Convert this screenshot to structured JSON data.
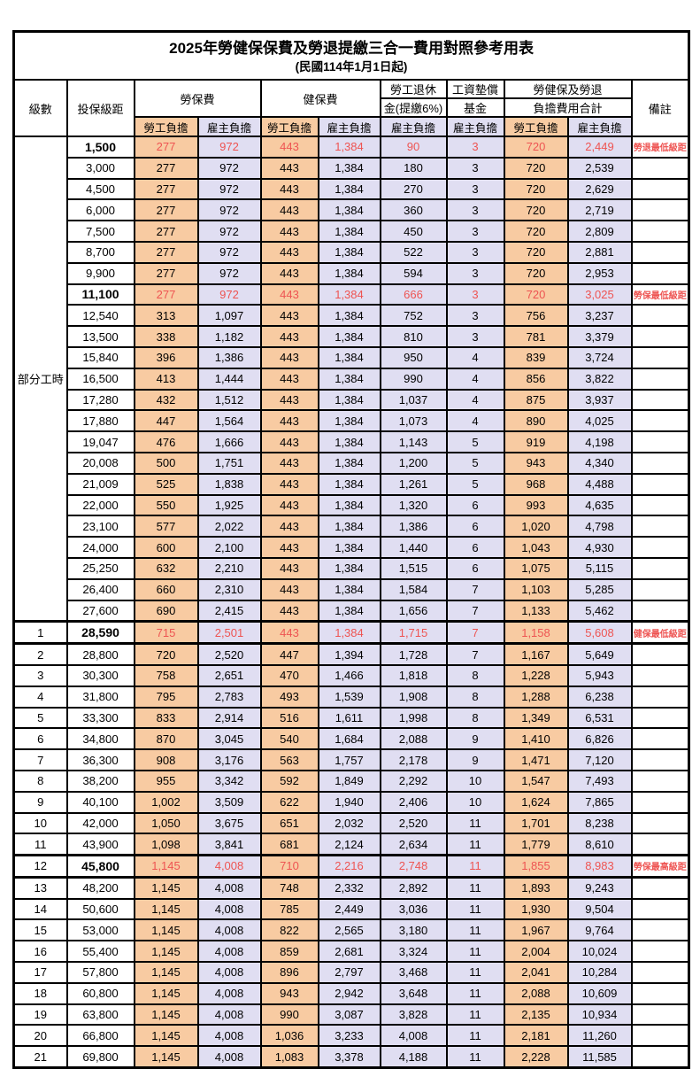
{
  "title": "2025年勞健保保費及勞退提繳三合一費用對照參考用表",
  "subtitle": "(民國114年1月1日起)",
  "colors": {
    "employee_share_bg": "#F8CBA2",
    "employer_share_bg": "#E0DEF2",
    "highlight_text": "#EE5452",
    "grid": "#000000"
  },
  "header": {
    "level": "級數",
    "bracket": "投保級距",
    "labor_ins": "勞保費",
    "health_ins": "健保費",
    "pension_l1": "勞工退休",
    "pension_l2": "金(提繳6%)",
    "wage_fund_l1": "工資墊償",
    "wage_fund_l2": "基金",
    "total_l1": "勞健保及勞退",
    "total_l2": "負擔費用合計",
    "remark": "備註",
    "employee": "勞工負擔",
    "employer": "雇主負擔"
  },
  "table": {
    "part_time_label": "部分工時",
    "part_time_rowspan": 23,
    "rows": [
      {
        "part_time": true,
        "level": "",
        "bracket": "1,500",
        "fees": [
          "277",
          "972",
          "443",
          "1,384",
          "90",
          "3",
          "720",
          "2,449"
        ],
        "remark": "勞退最低級距",
        "highlight": true,
        "thick": false
      },
      {
        "part_time": true,
        "level": "",
        "bracket": "3,000",
        "fees": [
          "277",
          "972",
          "443",
          "1,384",
          "180",
          "3",
          "720",
          "2,539"
        ],
        "remark": "",
        "highlight": false,
        "thick": false
      },
      {
        "part_time": true,
        "level": "",
        "bracket": "4,500",
        "fees": [
          "277",
          "972",
          "443",
          "1,384",
          "270",
          "3",
          "720",
          "2,629"
        ],
        "remark": "",
        "highlight": false,
        "thick": false
      },
      {
        "part_time": true,
        "level": "",
        "bracket": "6,000",
        "fees": [
          "277",
          "972",
          "443",
          "1,384",
          "360",
          "3",
          "720",
          "2,719"
        ],
        "remark": "",
        "highlight": false,
        "thick": false
      },
      {
        "part_time": true,
        "level": "",
        "bracket": "7,500",
        "fees": [
          "277",
          "972",
          "443",
          "1,384",
          "450",
          "3",
          "720",
          "2,809"
        ],
        "remark": "",
        "highlight": false,
        "thick": false
      },
      {
        "part_time": true,
        "level": "",
        "bracket": "8,700",
        "fees": [
          "277",
          "972",
          "443",
          "1,384",
          "522",
          "3",
          "720",
          "2,881"
        ],
        "remark": "",
        "highlight": false,
        "thick": false
      },
      {
        "part_time": true,
        "level": "",
        "bracket": "9,900",
        "fees": [
          "277",
          "972",
          "443",
          "1,384",
          "594",
          "3",
          "720",
          "2,953"
        ],
        "remark": "",
        "highlight": false,
        "thick": false
      },
      {
        "part_time": true,
        "level": "",
        "bracket": "11,100",
        "fees": [
          "277",
          "972",
          "443",
          "1,384",
          "666",
          "3",
          "720",
          "3,025"
        ],
        "remark": "勞保最低級距",
        "highlight": true,
        "thick": false
      },
      {
        "part_time": true,
        "level": "",
        "bracket": "12,540",
        "fees": [
          "313",
          "1,097",
          "443",
          "1,384",
          "752",
          "3",
          "756",
          "3,237"
        ],
        "remark": "",
        "highlight": false,
        "thick": false
      },
      {
        "part_time": true,
        "level": "",
        "bracket": "13,500",
        "fees": [
          "338",
          "1,182",
          "443",
          "1,384",
          "810",
          "3",
          "781",
          "3,379"
        ],
        "remark": "",
        "highlight": false,
        "thick": false
      },
      {
        "part_time": true,
        "level": "",
        "bracket": "15,840",
        "fees": [
          "396",
          "1,386",
          "443",
          "1,384",
          "950",
          "4",
          "839",
          "3,724"
        ],
        "remark": "",
        "highlight": false,
        "thick": false
      },
      {
        "part_time": true,
        "level": "",
        "bracket": "16,500",
        "fees": [
          "413",
          "1,444",
          "443",
          "1,384",
          "990",
          "4",
          "856",
          "3,822"
        ],
        "remark": "",
        "highlight": false,
        "thick": false
      },
      {
        "part_time": true,
        "level": "",
        "bracket": "17,280",
        "fees": [
          "432",
          "1,512",
          "443",
          "1,384",
          "1,037",
          "4",
          "875",
          "3,937"
        ],
        "remark": "",
        "highlight": false,
        "thick": false
      },
      {
        "part_time": true,
        "level": "",
        "bracket": "17,880",
        "fees": [
          "447",
          "1,564",
          "443",
          "1,384",
          "1,073",
          "4",
          "890",
          "4,025"
        ],
        "remark": "",
        "highlight": false,
        "thick": false
      },
      {
        "part_time": true,
        "level": "",
        "bracket": "19,047",
        "fees": [
          "476",
          "1,666",
          "443",
          "1,384",
          "1,143",
          "5",
          "919",
          "4,198"
        ],
        "remark": "",
        "highlight": false,
        "thick": false
      },
      {
        "part_time": true,
        "level": "",
        "bracket": "20,008",
        "fees": [
          "500",
          "1,751",
          "443",
          "1,384",
          "1,200",
          "5",
          "943",
          "4,340"
        ],
        "remark": "",
        "highlight": false,
        "thick": false
      },
      {
        "part_time": true,
        "level": "",
        "bracket": "21,009",
        "fees": [
          "525",
          "1,838",
          "443",
          "1,384",
          "1,261",
          "5",
          "968",
          "4,488"
        ],
        "remark": "",
        "highlight": false,
        "thick": false
      },
      {
        "part_time": true,
        "level": "",
        "bracket": "22,000",
        "fees": [
          "550",
          "1,925",
          "443",
          "1,384",
          "1,320",
          "6",
          "993",
          "4,635"
        ],
        "remark": "",
        "highlight": false,
        "thick": false
      },
      {
        "part_time": true,
        "level": "",
        "bracket": "23,100",
        "fees": [
          "577",
          "2,022",
          "443",
          "1,384",
          "1,386",
          "6",
          "1,020",
          "4,798"
        ],
        "remark": "",
        "highlight": false,
        "thick": false
      },
      {
        "part_time": true,
        "level": "",
        "bracket": "24,000",
        "fees": [
          "600",
          "2,100",
          "443",
          "1,384",
          "1,440",
          "6",
          "1,043",
          "4,930"
        ],
        "remark": "",
        "highlight": false,
        "thick": false
      },
      {
        "part_time": true,
        "level": "",
        "bracket": "25,250",
        "fees": [
          "632",
          "2,210",
          "443",
          "1,384",
          "1,515",
          "6",
          "1,075",
          "5,115"
        ],
        "remark": "",
        "highlight": false,
        "thick": false
      },
      {
        "part_time": true,
        "level": "",
        "bracket": "26,400",
        "fees": [
          "660",
          "2,310",
          "443",
          "1,384",
          "1,584",
          "7",
          "1,103",
          "5,285"
        ],
        "remark": "",
        "highlight": false,
        "thick": false
      },
      {
        "part_time": true,
        "level": "",
        "bracket": "27,600",
        "fees": [
          "690",
          "2,415",
          "443",
          "1,384",
          "1,656",
          "7",
          "1,133",
          "5,462"
        ],
        "remark": "",
        "highlight": false,
        "thick": false
      },
      {
        "part_time": false,
        "level": "1",
        "bracket": "28,590",
        "fees": [
          "715",
          "2,501",
          "443",
          "1,384",
          "1,715",
          "7",
          "1,158",
          "5,608"
        ],
        "remark": "健保最低級距",
        "highlight": true,
        "thick": true
      },
      {
        "part_time": false,
        "level": "2",
        "bracket": "28,800",
        "fees": [
          "720",
          "2,520",
          "447",
          "1,394",
          "1,728",
          "7",
          "1,167",
          "5,649"
        ],
        "remark": "",
        "highlight": false,
        "thick": false
      },
      {
        "part_time": false,
        "level": "3",
        "bracket": "30,300",
        "fees": [
          "758",
          "2,651",
          "470",
          "1,466",
          "1,818",
          "8",
          "1,228",
          "5,943"
        ],
        "remark": "",
        "highlight": false,
        "thick": false
      },
      {
        "part_time": false,
        "level": "4",
        "bracket": "31,800",
        "fees": [
          "795",
          "2,783",
          "493",
          "1,539",
          "1,908",
          "8",
          "1,288",
          "6,238"
        ],
        "remark": "",
        "highlight": false,
        "thick": false
      },
      {
        "part_time": false,
        "level": "5",
        "bracket": "33,300",
        "fees": [
          "833",
          "2,914",
          "516",
          "1,611",
          "1,998",
          "8",
          "1,349",
          "6,531"
        ],
        "remark": "",
        "highlight": false,
        "thick": false
      },
      {
        "part_time": false,
        "level": "6",
        "bracket": "34,800",
        "fees": [
          "870",
          "3,045",
          "540",
          "1,684",
          "2,088",
          "9",
          "1,410",
          "6,826"
        ],
        "remark": "",
        "highlight": false,
        "thick": false
      },
      {
        "part_time": false,
        "level": "7",
        "bracket": "36,300",
        "fees": [
          "908",
          "3,176",
          "563",
          "1,757",
          "2,178",
          "9",
          "1,471",
          "7,120"
        ],
        "remark": "",
        "highlight": false,
        "thick": false
      },
      {
        "part_time": false,
        "level": "8",
        "bracket": "38,200",
        "fees": [
          "955",
          "3,342",
          "592",
          "1,849",
          "2,292",
          "10",
          "1,547",
          "7,493"
        ],
        "remark": "",
        "highlight": false,
        "thick": false
      },
      {
        "part_time": false,
        "level": "9",
        "bracket": "40,100",
        "fees": [
          "1,002",
          "3,509",
          "622",
          "1,940",
          "2,406",
          "10",
          "1,624",
          "7,865"
        ],
        "remark": "",
        "highlight": false,
        "thick": false
      },
      {
        "part_time": false,
        "level": "10",
        "bracket": "42,000",
        "fees": [
          "1,050",
          "3,675",
          "651",
          "2,032",
          "2,520",
          "11",
          "1,701",
          "8,238"
        ],
        "remark": "",
        "highlight": false,
        "thick": false
      },
      {
        "part_time": false,
        "level": "11",
        "bracket": "43,900",
        "fees": [
          "1,098",
          "3,841",
          "681",
          "2,124",
          "2,634",
          "11",
          "1,779",
          "8,610"
        ],
        "remark": "",
        "highlight": false,
        "thick": false
      },
      {
        "part_time": false,
        "level": "12",
        "bracket": "45,800",
        "fees": [
          "1,145",
          "4,008",
          "710",
          "2,216",
          "2,748",
          "11",
          "1,855",
          "8,983"
        ],
        "remark": "勞保最高級距",
        "highlight": true,
        "thick": true
      },
      {
        "part_time": false,
        "level": "13",
        "bracket": "48,200",
        "fees": [
          "1,145",
          "4,008",
          "748",
          "2,332",
          "2,892",
          "11",
          "1,893",
          "9,243"
        ],
        "remark": "",
        "highlight": false,
        "thick": false
      },
      {
        "part_time": false,
        "level": "14",
        "bracket": "50,600",
        "fees": [
          "1,145",
          "4,008",
          "785",
          "2,449",
          "3,036",
          "11",
          "1,930",
          "9,504"
        ],
        "remark": "",
        "highlight": false,
        "thick": false
      },
      {
        "part_time": false,
        "level": "15",
        "bracket": "53,000",
        "fees": [
          "1,145",
          "4,008",
          "822",
          "2,565",
          "3,180",
          "11",
          "1,967",
          "9,764"
        ],
        "remark": "",
        "highlight": false,
        "thick": false
      },
      {
        "part_time": false,
        "level": "16",
        "bracket": "55,400",
        "fees": [
          "1,145",
          "4,008",
          "859",
          "2,681",
          "3,324",
          "11",
          "2,004",
          "10,024"
        ],
        "remark": "",
        "highlight": false,
        "thick": false
      },
      {
        "part_time": false,
        "level": "17",
        "bracket": "57,800",
        "fees": [
          "1,145",
          "4,008",
          "896",
          "2,797",
          "3,468",
          "11",
          "2,041",
          "10,284"
        ],
        "remark": "",
        "highlight": false,
        "thick": false
      },
      {
        "part_time": false,
        "level": "18",
        "bracket": "60,800",
        "fees": [
          "1,145",
          "4,008",
          "943",
          "2,942",
          "3,648",
          "11",
          "2,088",
          "10,609"
        ],
        "remark": "",
        "highlight": false,
        "thick": false
      },
      {
        "part_time": false,
        "level": "19",
        "bracket": "63,800",
        "fees": [
          "1,145",
          "4,008",
          "990",
          "3,087",
          "3,828",
          "11",
          "2,135",
          "10,934"
        ],
        "remark": "",
        "highlight": false,
        "thick": false
      },
      {
        "part_time": false,
        "level": "20",
        "bracket": "66,800",
        "fees": [
          "1,145",
          "4,008",
          "1,036",
          "3,233",
          "4,008",
          "11",
          "2,181",
          "11,260"
        ],
        "remark": "",
        "highlight": false,
        "thick": false
      },
      {
        "part_time": false,
        "level": "21",
        "bracket": "69,800",
        "fees": [
          "1,145",
          "4,008",
          "1,083",
          "3,378",
          "4,188",
          "11",
          "2,228",
          "11,585"
        ],
        "remark": "",
        "highlight": false,
        "thick": false
      }
    ]
  }
}
